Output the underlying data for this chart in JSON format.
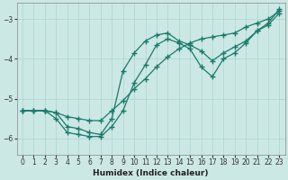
{
  "xlabel": "Humidex (Indice chaleur)",
  "background_color": "#cce8e4",
  "grid_color": "#aad4d0",
  "line_color": "#1a7a6a",
  "xlim": [
    -0.5,
    23.5
  ],
  "ylim": [
    -6.4,
    -2.6
  ],
  "yticks": [
    -6,
    -5,
    -4,
    -3
  ],
  "xticks": [
    0,
    1,
    2,
    3,
    4,
    5,
    6,
    7,
    8,
    9,
    10,
    11,
    12,
    13,
    14,
    15,
    16,
    17,
    18,
    19,
    20,
    21,
    22,
    23
  ],
  "series1_x": [
    0,
    1,
    2,
    3,
    4,
    5,
    6,
    7,
    8,
    9,
    10,
    11,
    12,
    13,
    14,
    15,
    16,
    17,
    18,
    19,
    20,
    21,
    22,
    23
  ],
  "series1_y": [
    -5.3,
    -5.3,
    -5.3,
    -5.35,
    -5.45,
    -5.5,
    -5.55,
    -5.55,
    -5.3,
    -5.05,
    -4.75,
    -4.5,
    -4.2,
    -3.95,
    -3.75,
    -3.6,
    -3.5,
    -3.45,
    -3.4,
    -3.35,
    -3.2,
    -3.1,
    -3.0,
    -2.8
  ],
  "series2_x": [
    0,
    1,
    2,
    3,
    4,
    5,
    6,
    7,
    8,
    9,
    10,
    11,
    12,
    13,
    14,
    15,
    16,
    17,
    18,
    19,
    20,
    21,
    22,
    23
  ],
  "series2_y": [
    -5.3,
    -5.3,
    -5.3,
    -5.35,
    -5.7,
    -5.75,
    -5.85,
    -5.9,
    -5.5,
    -4.3,
    -3.85,
    -3.55,
    -3.4,
    -3.35,
    -3.55,
    -3.65,
    -3.8,
    -4.05,
    -3.85,
    -3.7,
    -3.55,
    -3.3,
    -3.15,
    -2.85
  ],
  "series3_x": [
    0,
    1,
    2,
    3,
    4,
    5,
    6,
    7,
    8,
    9,
    10,
    11,
    12,
    13,
    14,
    15,
    16,
    17,
    18,
    19,
    20,
    21,
    22,
    23
  ],
  "series3_y": [
    -5.3,
    -5.3,
    -5.3,
    -5.5,
    -5.85,
    -5.9,
    -5.95,
    -5.95,
    -5.7,
    -5.3,
    -4.6,
    -4.15,
    -3.65,
    -3.5,
    -3.6,
    -3.75,
    -4.2,
    -4.45,
    -4.0,
    -3.85,
    -3.6,
    -3.3,
    -3.1,
    -2.75
  ]
}
